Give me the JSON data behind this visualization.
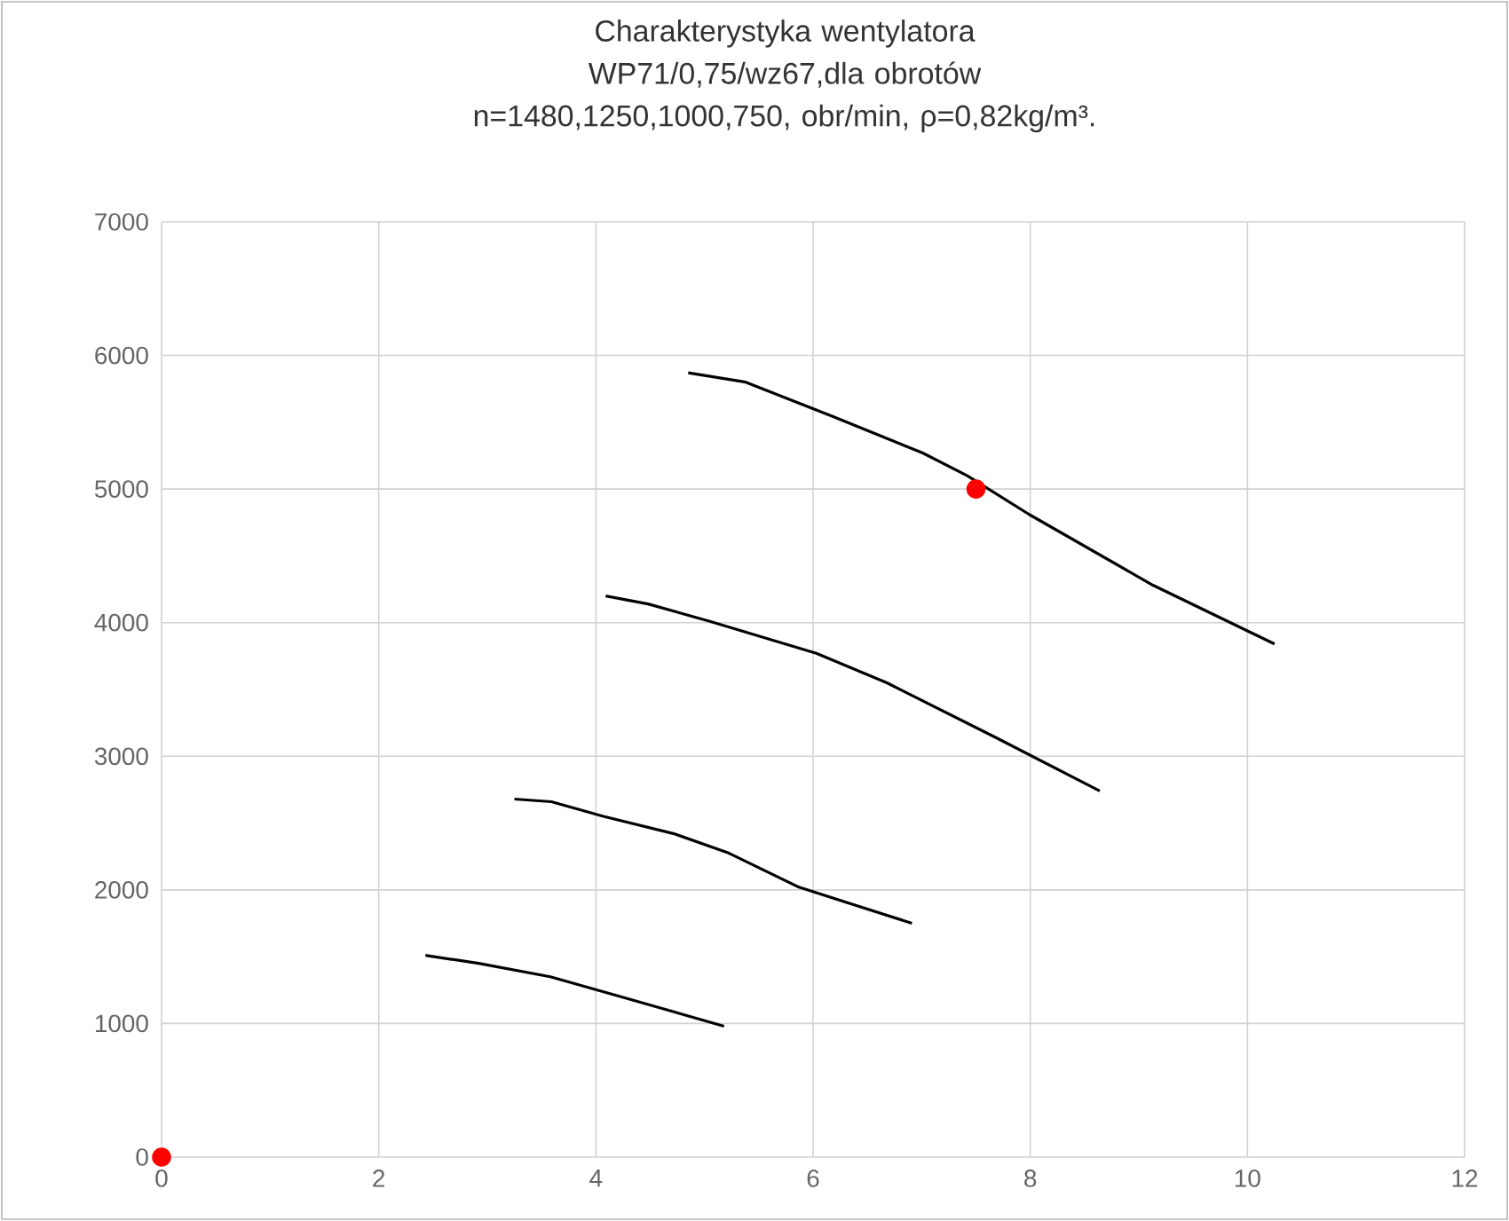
{
  "chart_data": {
    "type": "line",
    "title": "Charakterystyka wentylatora",
    "subtitle": "WP71/0,75/wz67,dla obrotów n=1480,1250,1000,750, obr/min, ρ=0,82kg/m³.",
    "xlim": [
      0,
      12
    ],
    "ylim": [
      0,
      7000
    ],
    "xticks": [
      0,
      2,
      4,
      6,
      8,
      10,
      12
    ],
    "yticks": [
      0,
      1000,
      2000,
      3000,
      4000,
      5000,
      6000,
      7000
    ],
    "grid": true,
    "series": [
      {
        "type": "line",
        "color": "#000000",
        "x": [
          4.85,
          5.38,
          6.19,
          7.01,
          7.42,
          7.99,
          9.13,
          10.25
        ],
        "values": [
          5870,
          5800,
          5540,
          5270,
          5100,
          4810,
          4280,
          3840
        ]
      },
      {
        "type": "line",
        "color": "#000000",
        "x": [
          4.09,
          4.48,
          5.05,
          6.03,
          6.68,
          7.66,
          8.64
        ],
        "values": [
          4200,
          4140,
          4010,
          3770,
          3550,
          3150,
          2740
        ]
      },
      {
        "type": "line",
        "color": "#000000",
        "x": [
          3.25,
          3.59,
          4.07,
          4.72,
          5.21,
          5.87,
          6.91
        ],
        "values": [
          2680,
          2660,
          2550,
          2420,
          2280,
          2020,
          1750
        ]
      },
      {
        "type": "line",
        "color": "#000000",
        "x": [
          2.43,
          2.92,
          3.58,
          4.23,
          5.18
        ],
        "values": [
          1510,
          1450,
          1350,
          1200,
          980
        ]
      },
      {
        "type": "scatter",
        "color": "#ff0000",
        "marker": "circle",
        "x": [
          0,
          7.5
        ],
        "values": [
          0,
          5000
        ]
      }
    ]
  }
}
